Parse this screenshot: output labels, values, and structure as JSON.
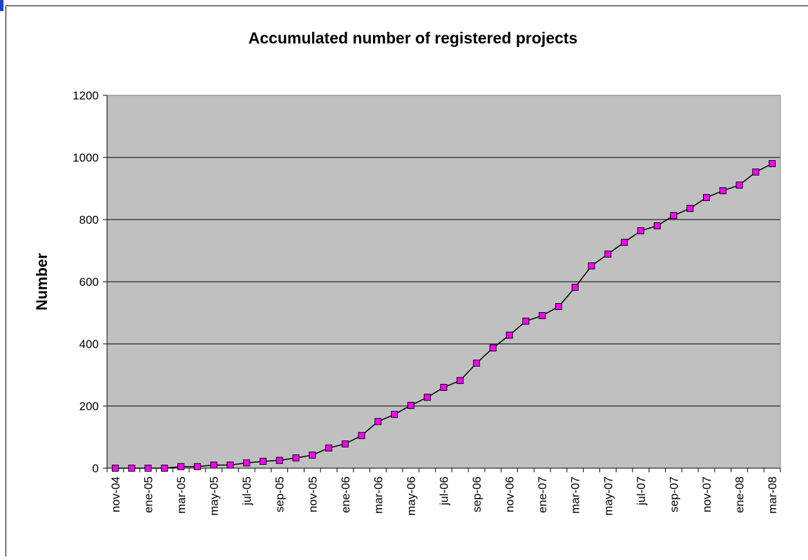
{
  "chart_data": {
    "type": "line",
    "title": "Accumulated number of registered projects",
    "y_label": "Number",
    "categories": [
      "nov-04",
      null,
      "ene-05",
      null,
      "mar-05",
      null,
      "may-05",
      null,
      "jul-05",
      null,
      "sep-05",
      null,
      "nov-05",
      null,
      "ene-06",
      null,
      "mar-06",
      null,
      "may-06",
      null,
      "jul-06",
      null,
      "sep-06",
      null,
      "nov-06",
      null,
      "ene-07",
      null,
      "mar-07",
      null,
      "may-07",
      null,
      "jul-07",
      null,
      "sep-07",
      null,
      "nov-07",
      null,
      "ene-08",
      null,
      "mar-08"
    ],
    "series": [
      {
        "name": "Number",
        "color": "#ff00ff",
        "line_color": "#000000",
        "values": [
          0,
          0,
          0,
          0,
          5,
          5,
          10,
          10,
          17,
          22,
          25,
          33,
          42,
          65,
          78,
          105,
          150,
          173,
          202,
          228,
          260,
          282,
          338,
          387,
          428,
          473,
          491,
          520,
          582,
          651,
          689,
          727,
          764,
          780,
          813,
          836,
          871,
          893,
          911,
          953,
          980
        ]
      }
    ],
    "ylim": [
      0,
      1200
    ],
    "yticks": [
      0,
      200,
      400,
      600,
      800,
      1000,
      1200
    ],
    "grid": true,
    "plot_background": "#c0c0c0"
  }
}
